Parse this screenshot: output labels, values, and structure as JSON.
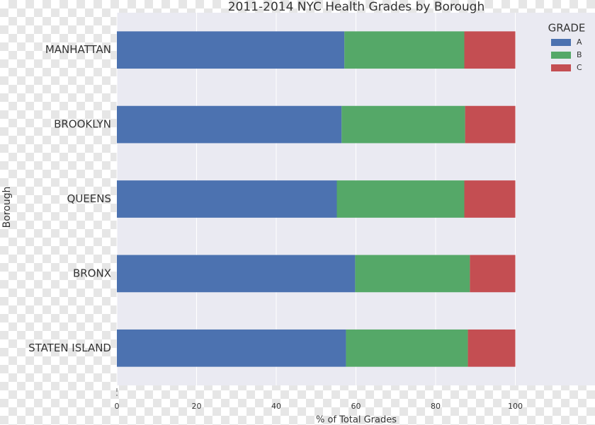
{
  "chart_data": {
    "type": "stacked-barh",
    "title": "2011-2014 NYC Health Grades by Borough",
    "xlabel": "% of Total Grades",
    "ylabel": "Borough",
    "categories": [
      "MANHATTAN",
      "BROOKLYN",
      "QUEENS",
      "BRONX",
      "STATEN ISLAND"
    ],
    "series": [
      {
        "name": "A",
        "color": "#4c72b0",
        "values": [
          57.1,
          56.4,
          55.2,
          59.8,
          57.5
        ]
      },
      {
        "name": "B",
        "color": "#55a868",
        "values": [
          30.1,
          31.0,
          32.0,
          28.8,
          30.6
        ]
      },
      {
        "name": "C",
        "color": "#c44e52",
        "values": [
          12.8,
          12.6,
          12.8,
          11.4,
          11.9
        ]
      }
    ],
    "xlim": [
      0,
      120
    ],
    "xticks": [
      0,
      20,
      40,
      60,
      80,
      100
    ],
    "grid": true,
    "legend_title": "GRADE",
    "legend": "upper right"
  }
}
